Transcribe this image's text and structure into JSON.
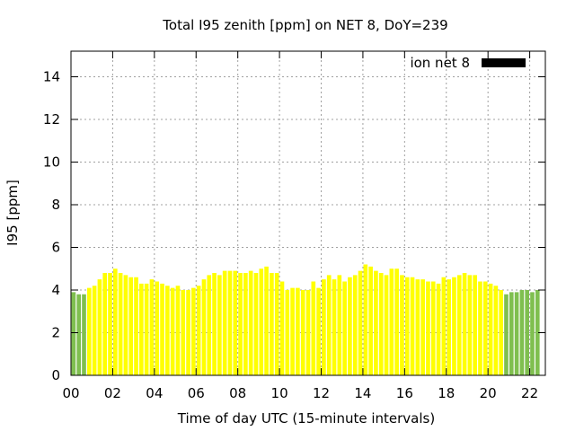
{
  "chart_data": {
    "type": "bar",
    "title": "Total I95 zenith [ppm] on NET 8, DoY=239",
    "xlabel": "Time of day UTC (15-minute intervals)",
    "ylabel": "I95 [ppm]",
    "xlim": [
      0,
      22.75
    ],
    "ylim": [
      0,
      15.2
    ],
    "x_ticks": [
      "00",
      "02",
      "04",
      "06",
      "08",
      "10",
      "12",
      "14",
      "16",
      "18",
      "20",
      "22"
    ],
    "y_ticks": [
      "0",
      "2",
      "4",
      "6",
      "8",
      "10",
      "12",
      "14"
    ],
    "grid": true,
    "legend": {
      "label": "ion net 8",
      "position": "top-right",
      "color": "#000000"
    },
    "interval_hours": 0.25,
    "colors": {
      "yellow": "#ffff00",
      "green": "#7fbf4f"
    },
    "series": [
      {
        "values": [
          3.9,
          3.8,
          3.8,
          4.1,
          4.2,
          4.5,
          4.8,
          4.8,
          5.0,
          4.8,
          4.7,
          4.6,
          4.6,
          4.3,
          4.3,
          4.5,
          4.4,
          4.3,
          4.2,
          4.1,
          4.2,
          4.0,
          4.0,
          4.1,
          4.2,
          4.5,
          4.7,
          4.8,
          4.7,
          4.9,
          4.9,
          4.9,
          4.8,
          4.8,
          4.9,
          4.8,
          5.0,
          5.1,
          4.8,
          4.8,
          4.4,
          4.0,
          4.1,
          4.1,
          4.0,
          4.0,
          4.4,
          4.1,
          4.5,
          4.7,
          4.5,
          4.7,
          4.4,
          4.6,
          4.7,
          4.9,
          5.2,
          5.1,
          4.9,
          4.8,
          4.7,
          5.0,
          5.0,
          4.7,
          4.6,
          4.6,
          4.5,
          4.5,
          4.4,
          4.4,
          4.3,
          4.6,
          4.5,
          4.6,
          4.7,
          4.8,
          4.7,
          4.7,
          4.4,
          4.4,
          4.3,
          4.2,
          4.0,
          3.8,
          3.9,
          3.9,
          4.0,
          4.0,
          3.9,
          4.0
        ],
        "colors": [
          "green",
          "green",
          "green",
          "yellow",
          "yellow",
          "yellow",
          "yellow",
          "yellow",
          "yellow",
          "yellow",
          "yellow",
          "yellow",
          "yellow",
          "yellow",
          "yellow",
          "yellow",
          "yellow",
          "yellow",
          "yellow",
          "yellow",
          "yellow",
          "yellow",
          "yellow",
          "yellow",
          "yellow",
          "yellow",
          "yellow",
          "yellow",
          "yellow",
          "yellow",
          "yellow",
          "yellow",
          "yellow",
          "yellow",
          "yellow",
          "yellow",
          "yellow",
          "yellow",
          "yellow",
          "yellow",
          "yellow",
          "yellow",
          "yellow",
          "yellow",
          "yellow",
          "yellow",
          "yellow",
          "yellow",
          "yellow",
          "yellow",
          "yellow",
          "yellow",
          "yellow",
          "yellow",
          "yellow",
          "yellow",
          "yellow",
          "yellow",
          "yellow",
          "yellow",
          "yellow",
          "yellow",
          "yellow",
          "yellow",
          "yellow",
          "yellow",
          "yellow",
          "yellow",
          "yellow",
          "yellow",
          "yellow",
          "yellow",
          "yellow",
          "yellow",
          "yellow",
          "yellow",
          "yellow",
          "yellow",
          "yellow",
          "yellow",
          "yellow",
          "yellow",
          "yellow",
          "green",
          "green",
          "green",
          "green",
          "green",
          "green",
          "green"
        ]
      }
    ]
  }
}
